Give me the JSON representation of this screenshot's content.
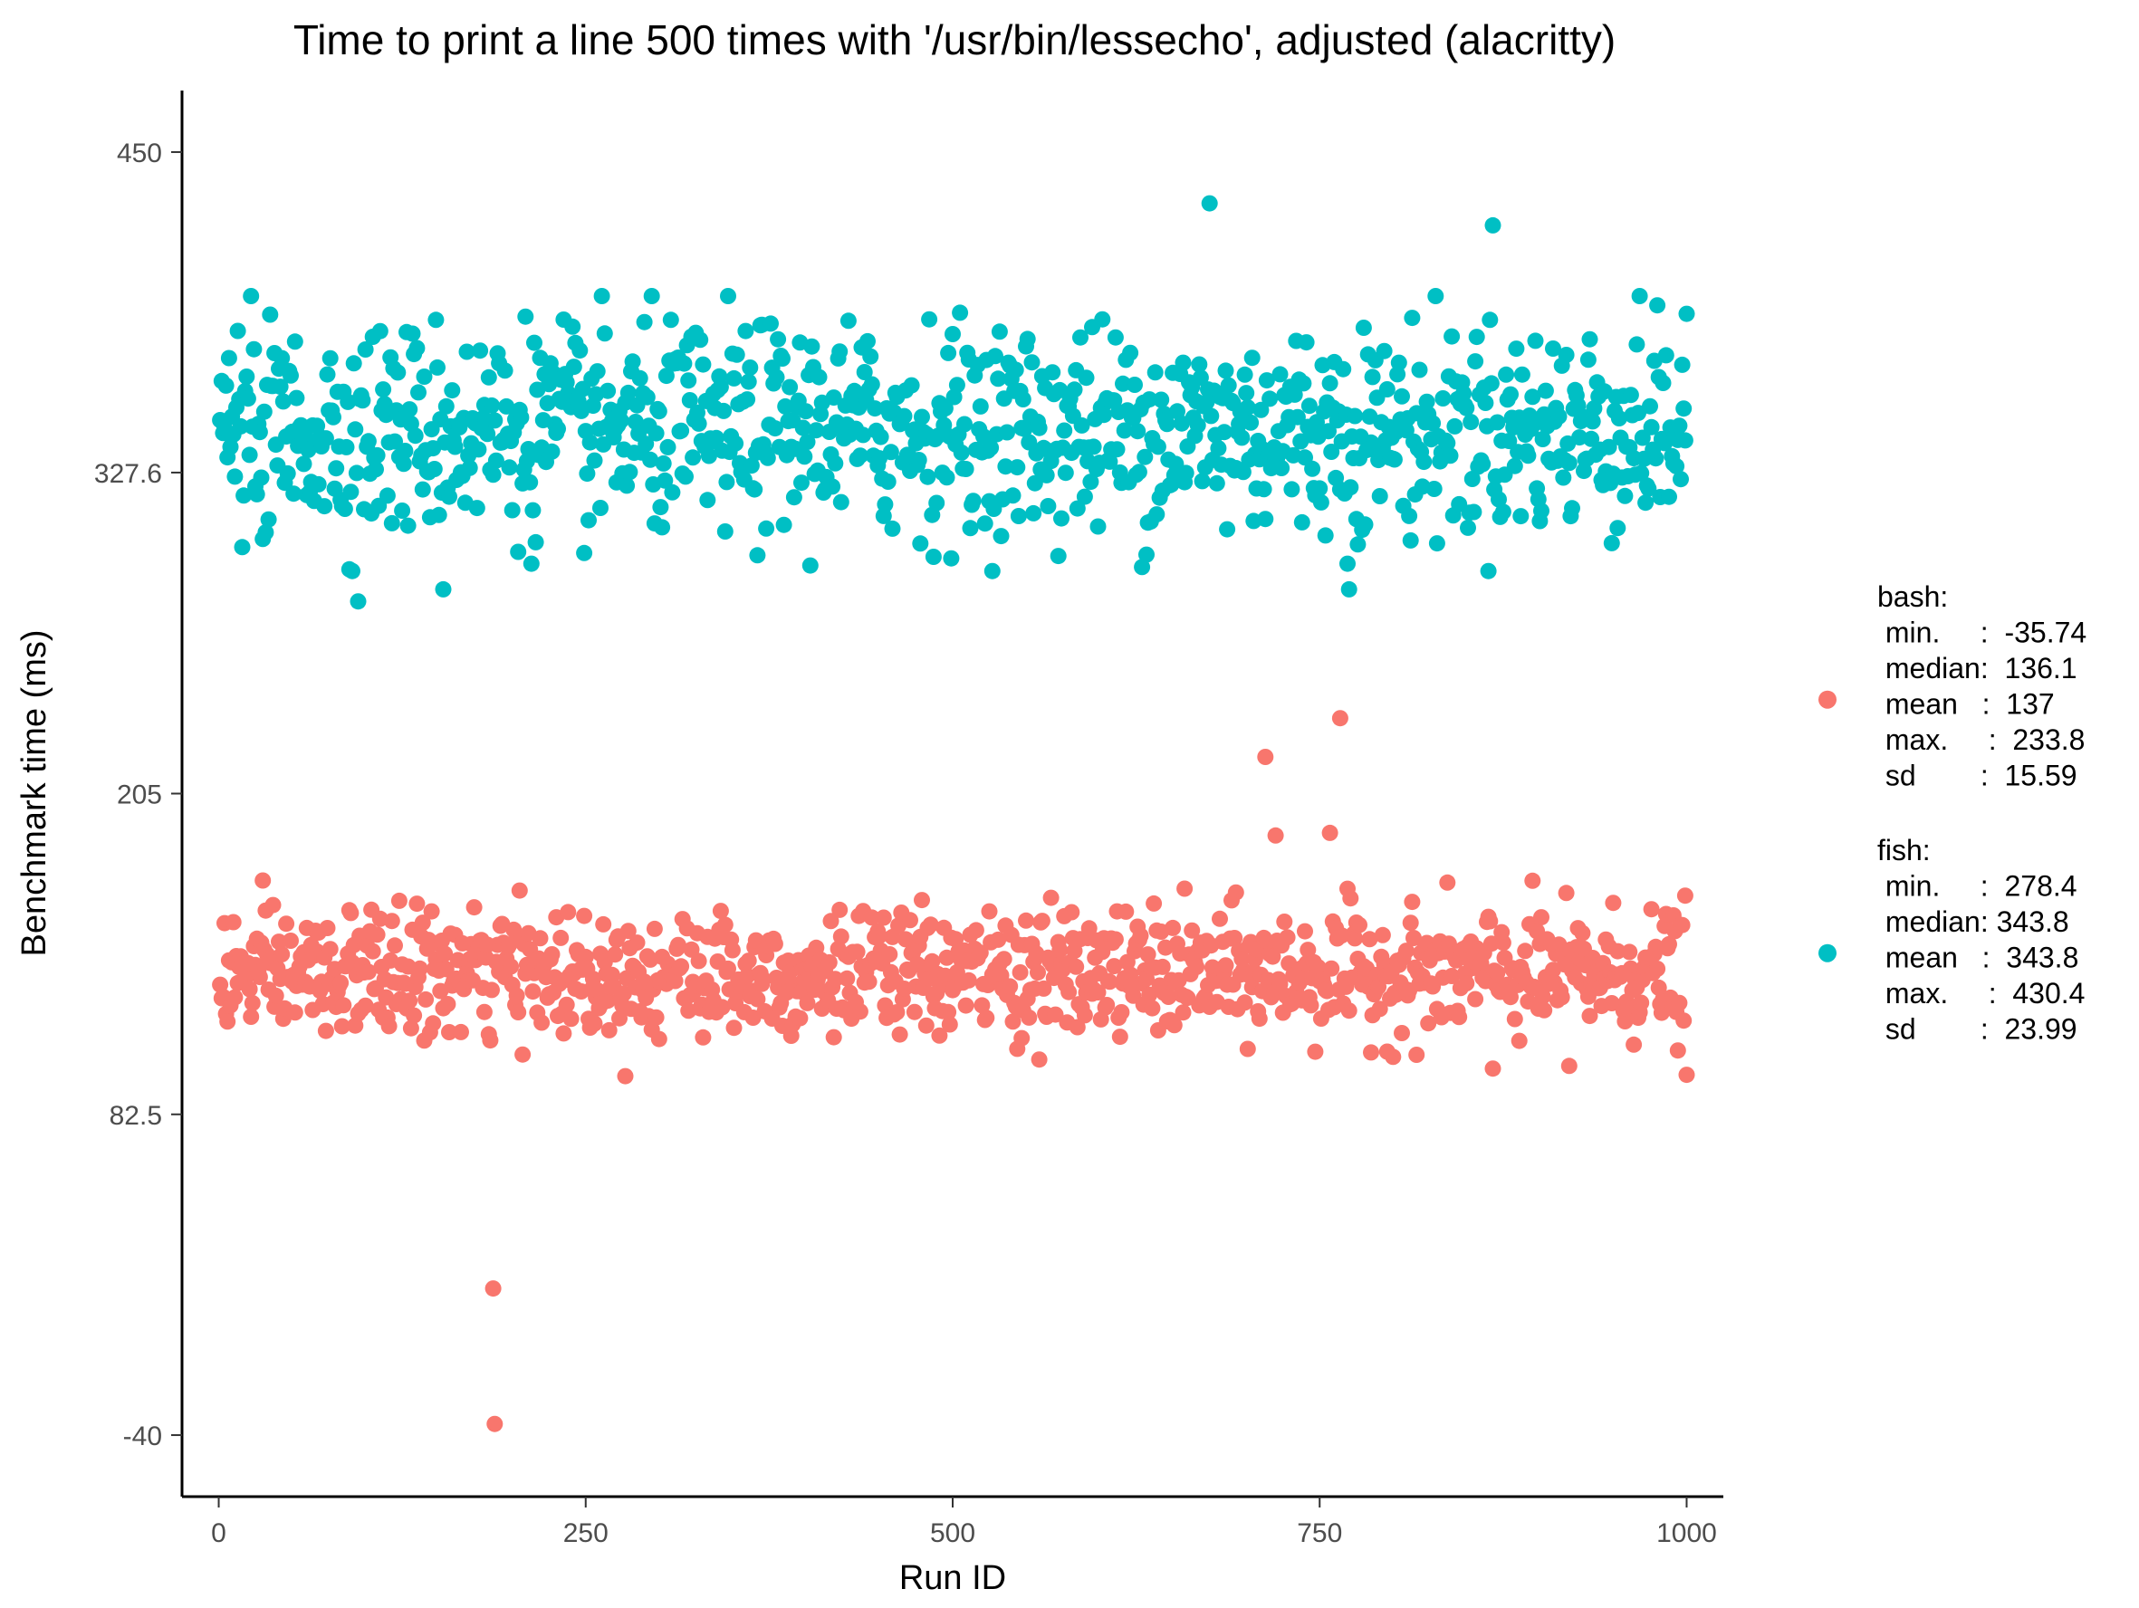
{
  "chart_data": {
    "type": "scatter",
    "title": "Time to print a line 500 times with '/usr/bin/lessecho', adjusted (alacritty)",
    "xlabel": "Run ID",
    "ylabel": "Benchmark time (ms)",
    "xlim": [
      -25,
      1025
    ],
    "ylim": [
      -63.5,
      473.5
    ],
    "xticks": [
      0,
      250,
      500,
      750,
      1000
    ],
    "xtick_labels": [
      "0",
      "250",
      "500",
      "750",
      "1000"
    ],
    "yticks": [
      -40,
      82.5,
      205,
      327.6,
      450
    ],
    "ytick_labels": [
      "-40",
      "82.5",
      "205",
      "327.6",
      "450"
    ],
    "grid": false,
    "legend_position": "right",
    "n_runs": 1000,
    "series": [
      {
        "name": "bash",
        "color": "#F8766D",
        "legend_lines": [
          "bash:",
          " min.     :  -35.74",
          " median:  136.1",
          " mean   :  137",
          " max.     :  233.8",
          " sd        :  15.59"
        ],
        "stats": {
          "min": -35.74,
          "median": 136.1,
          "mean": 137,
          "max": 233.8,
          "sd": 15.59
        },
        "outliers": [
          {
            "x": 188,
            "y": -35.74
          },
          {
            "x": 187,
            "y": 16
          },
          {
            "x": 713,
            "y": 219
          },
          {
            "x": 764,
            "y": 233.8
          },
          {
            "x": 720,
            "y": 189
          },
          {
            "x": 757,
            "y": 190
          },
          {
            "x": 920,
            "y": 101
          },
          {
            "x": 1000,
            "y": 97.6
          },
          {
            "x": 868,
            "y": 100
          }
        ]
      },
      {
        "name": "fish",
        "color": "#00BFC4",
        "legend_lines": [
          "fish:",
          " min.     :  278.4",
          " median: 343.8",
          " mean   :  343.8",
          " max.     :  430.4",
          " sd        :  23.99"
        ],
        "stats": {
          "min": 278.4,
          "median": 343.8,
          "mean": 343.8,
          "max": 430.4,
          "sd": 23.99
        },
        "outliers": [
          {
            "x": 675,
            "y": 430.4
          },
          {
            "x": 868,
            "y": 422
          },
          {
            "x": 95,
            "y": 278.4
          },
          {
            "x": 153,
            "y": 283
          },
          {
            "x": 770,
            "y": 283
          }
        ]
      }
    ]
  }
}
